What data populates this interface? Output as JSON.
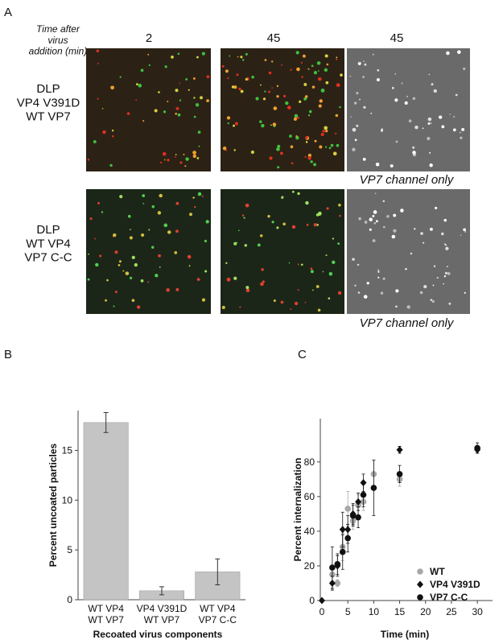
{
  "panel_a": {
    "label": "A",
    "time_header": "Time after\nvirus\naddition (min)",
    "columns": [
      "2",
      "45",
      "45"
    ],
    "rows": [
      "DLP\nVP4 V391D\nWT VP7",
      "DLP\nWT VP4\nVP7 C-C"
    ],
    "channel_note": "VP7 channel only"
  },
  "chart_data": [
    {
      "type": "bar",
      "panel": "B",
      "y_label": "Percent uncoated particles",
      "x_label": "Recoated virus components",
      "categories": [
        "WT VP4\nWT VP7",
        "VP4 V391D\nWT VP7",
        "WT VP4\nVP7 C-C"
      ],
      "values": [
        17.8,
        0.9,
        2.8
      ],
      "errors": [
        1,
        0.4,
        1.3
      ],
      "color": "#c4c4c4",
      "ylim": [
        0,
        19
      ],
      "yticks": [
        0,
        5,
        10,
        15
      ]
    },
    {
      "type": "scatter",
      "panel": "C",
      "y_label": "Percent internalization",
      "x_label": "Time (min)",
      "xlim": [
        0,
        32
      ],
      "ylim": [
        0,
        105
      ],
      "xticks": [
        0,
        5,
        10,
        15,
        20,
        25,
        30
      ],
      "yticks": [
        0,
        20,
        40,
        60,
        80
      ],
      "series": [
        {
          "name": "WT",
          "color": "#a8a8a8",
          "marker": "circle",
          "x": [
            2,
            3,
            4,
            5,
            6,
            7,
            8,
            10,
            15,
            30
          ],
          "values": [
            15,
            10,
            31,
            53,
            46,
            55,
            57,
            73,
            70,
            88
          ],
          "errors": [
            4,
            2,
            8,
            10,
            5,
            6,
            5,
            8,
            4,
            3
          ]
        },
        {
          "name": "VP4 V391D",
          "color": "#111111",
          "marker": "diamond",
          "x": [
            0,
            2,
            3,
            4,
            5,
            6,
            7,
            8,
            15,
            30
          ],
          "values": [
            0,
            10,
            20,
            41,
            41,
            50,
            57,
            68,
            87,
            87
          ],
          "errors": [
            0,
            4,
            6,
            10,
            8,
            6,
            5,
            5,
            2,
            2
          ]
        },
        {
          "name": "VP7 C-C",
          "color": "#111111",
          "marker": "circle",
          "x": [
            2,
            3,
            4,
            5,
            6,
            7,
            8,
            10,
            15,
            30
          ],
          "values": [
            19,
            21,
            28,
            36,
            49,
            48,
            61,
            65,
            73,
            88
          ],
          "errors": [
            12,
            6,
            10,
            8,
            6,
            6,
            7,
            16,
            5,
            3
          ]
        }
      ]
    }
  ]
}
